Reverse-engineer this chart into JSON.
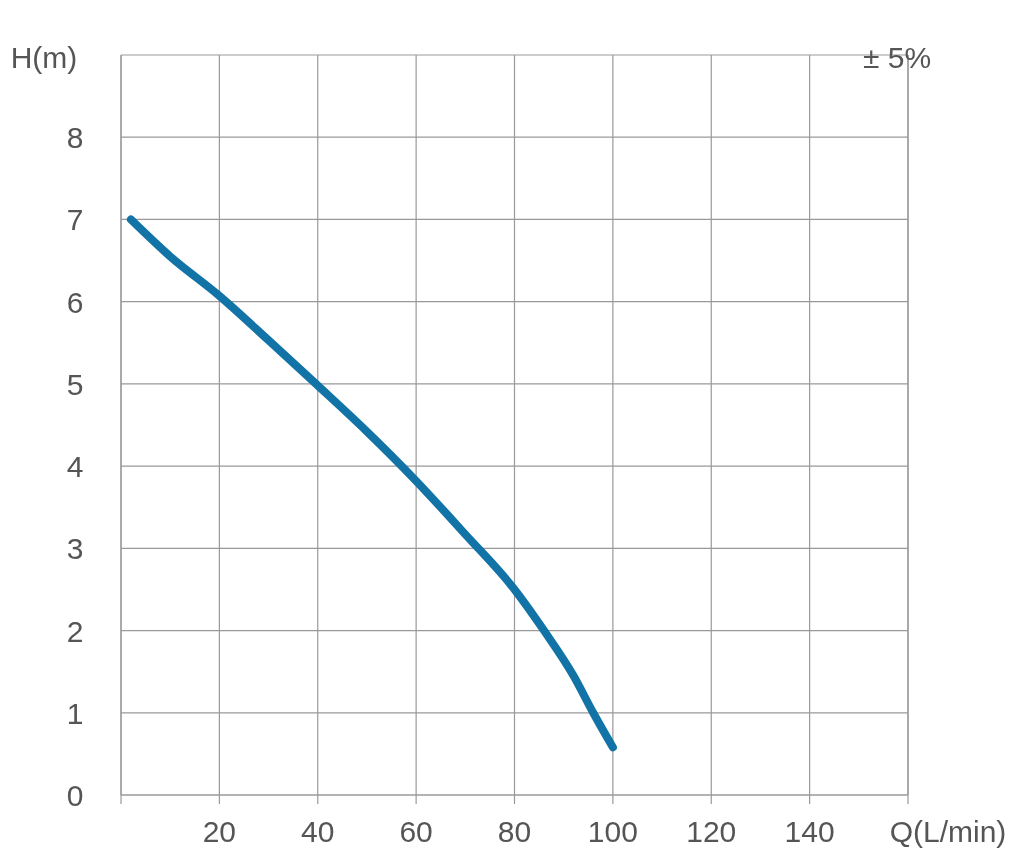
{
  "chart_data": {
    "type": "line",
    "xlabel": "Q(L/min)",
    "ylabel": "H(m)",
    "annotations": [
      "± 5%"
    ],
    "x": [
      2,
      10,
      20,
      30,
      40,
      50,
      60,
      70,
      80,
      86,
      92,
      96,
      100
    ],
    "series": [
      {
        "color": "#1273a6",
        "values": [
          7.0,
          6.55,
          6.07,
          5.53,
          4.98,
          4.42,
          3.82,
          3.17,
          2.5,
          2.0,
          1.45,
          1.0,
          0.58
        ]
      }
    ],
    "xlim": [
      0,
      160
    ],
    "xticks": [
      {
        "value": 0,
        "label": null
      },
      20,
      40,
      60,
      80,
      100,
      120,
      140,
      {
        "value": 160,
        "label": null
      }
    ],
    "ylim": [
      0,
      9
    ],
    "yticks": [
      0,
      1,
      2,
      3,
      4,
      5,
      6,
      7,
      8,
      {
        "value": 9,
        "label": null
      }
    ],
    "grid": true,
    "marker": "none",
    "line_style": "solid"
  }
}
